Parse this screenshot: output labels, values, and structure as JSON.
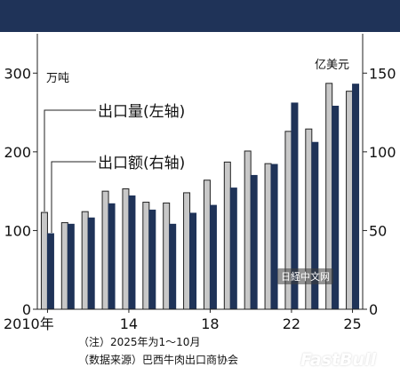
{
  "chart_data": {
    "type": "bar",
    "categories": [
      "2010年",
      "",
      "",
      "",
      "14",
      "",
      "",
      "",
      "18",
      "",
      "",
      "",
      "22",
      "",
      "",
      "25"
    ],
    "years": [
      2010,
      2011,
      2012,
      2013,
      2014,
      2015,
      2016,
      2017,
      2018,
      2019,
      2020,
      2021,
      2022,
      2023,
      2024,
      2025
    ],
    "series": [
      {
        "name": "出口量(左轴)",
        "axis": "left",
        "color": "#c8c8c8",
        "values": [
          123,
          110,
          124,
          150,
          153,
          136,
          135,
          148,
          164,
          187,
          201,
          185,
          226,
          229,
          287,
          277
        ]
      },
      {
        "name": "出口额(右轴)",
        "axis": "right",
        "color": "#1f3358",
        "values": [
          48,
          54,
          58,
          67,
          72,
          63,
          54,
          61,
          66,
          77,
          85,
          92,
          131,
          106,
          129,
          143
        ]
      }
    ],
    "y_left": {
      "unit": "万吨",
      "ticks": [
        "0",
        "100",
        "200",
        "300"
      ],
      "lim": [
        0,
        350
      ]
    },
    "y_right": {
      "unit": "亿美元",
      "ticks": [
        "0",
        "50",
        "100",
        "150"
      ],
      "lim": [
        0,
        175
      ]
    },
    "grid": false,
    "legend": "inline-labels-with-leader-lines"
  },
  "notes": {
    "note_label": "（注）2025年为1～10月",
    "source_label": "（数据来源）巴西牛肉出口商协会"
  },
  "watermarks": {
    "nikkei": "日経中文网",
    "fastbull": "FastBull"
  }
}
